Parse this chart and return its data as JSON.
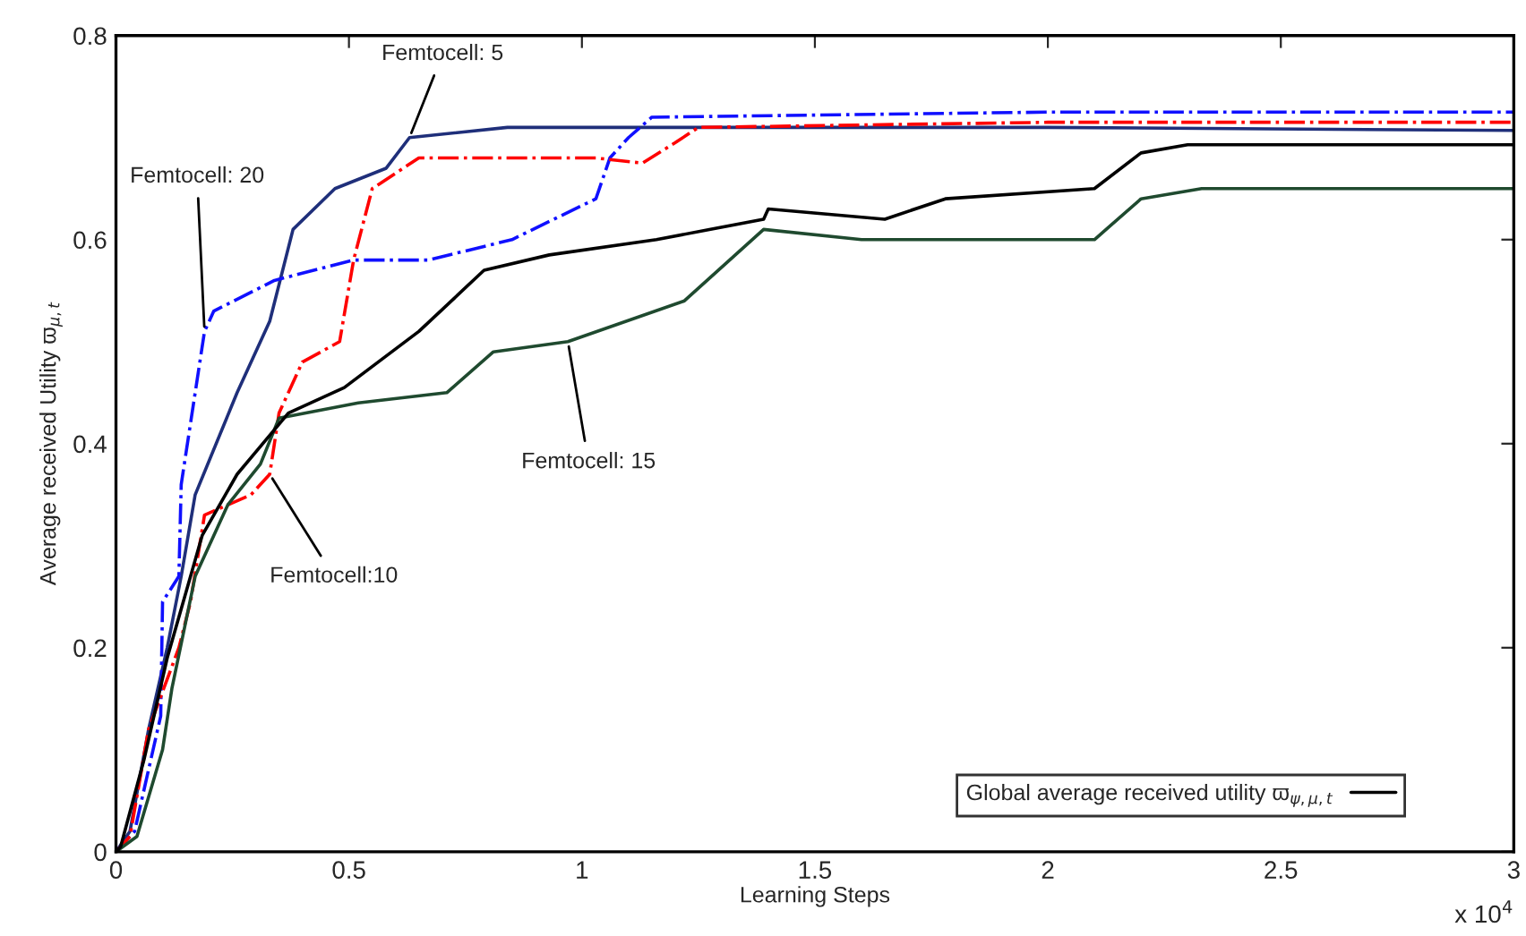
{
  "chart_data": {
    "type": "line",
    "xlabel": "Learning Steps",
    "ylabel": "Average received Utility ϖ$_{μ,t}$",
    "xlim": [
      0,
      3
    ],
    "xticks": [
      0,
      0.5,
      1,
      1.5,
      2,
      2.5,
      3
    ],
    "ylim": [
      0,
      0.8
    ],
    "yticks": [
      0,
      0.2,
      0.4,
      0.6,
      0.8
    ],
    "grid": false,
    "legend": "bottom right",
    "marker": "none",
    "annotations": [
      "x 10$^{4}$",
      {
        "text": "Femtocell: 5",
        "x": 0.63,
        "y": 0.7
      },
      {
        "text": "Femtocell: 20",
        "x": 0.19,
        "y": 0.51
      },
      {
        "text": "Femtocell:10",
        "x": 0.33,
        "y": 0.37
      },
      {
        "text": "Femtocell: 15",
        "x": 0.97,
        "y": 0.5
      }
    ],
    "series": [
      {
        "color": "#1f2f7a",
        "line_style": "solid",
        "x": [
          0,
          0.03,
          0.07,
          0.11,
          0.14,
          0.17,
          0.26,
          0.33,
          0.38,
          0.47,
          0.58,
          0.63,
          0.84,
          1.2,
          2.0,
          3.0
        ],
        "values": [
          0,
          0.02,
          0.12,
          0.2,
          0.27,
          0.35,
          0.45,
          0.52,
          0.61,
          0.65,
          0.67,
          0.7,
          0.71,
          0.71,
          0.71,
          0.707
        ]
      },
      {
        "color": "#1010ff",
        "line_style": "dashed",
        "x": [
          0,
          0.04,
          0.096,
          0.1,
          0.135,
          0.14,
          0.19,
          0.21,
          0.34,
          0.51,
          0.67,
          0.85,
          1.03,
          1.06,
          1.1,
          1.15,
          2.0,
          3.0
        ],
        "values": [
          0,
          0.02,
          0.133,
          0.245,
          0.27,
          0.36,
          0.51,
          0.53,
          0.56,
          0.58,
          0.58,
          0.6,
          0.64,
          0.68,
          0.7,
          0.72,
          0.725,
          0.725
        ]
      },
      {
        "color": "#ff0000",
        "line_style": "dashed",
        "x": [
          0,
          0.03,
          0.07,
          0.135,
          0.16,
          0.19,
          0.29,
          0.33,
          0.35,
          0.4,
          0.48,
          0.51,
          0.55,
          0.65,
          1.03,
          1.13,
          1.2,
          1.25,
          2.0,
          3.0
        ],
        "values": [
          0,
          0.015,
          0.12,
          0.2,
          0.245,
          0.33,
          0.35,
          0.37,
          0.43,
          0.48,
          0.5,
          0.58,
          0.65,
          0.68,
          0.68,
          0.675,
          0.695,
          0.71,
          0.715,
          0.715
        ]
      },
      {
        "color": "#1f4a2f",
        "line_style": "solid",
        "x": [
          0,
          0.045,
          0.1,
          0.12,
          0.17,
          0.24,
          0.31,
          0.35,
          0.52,
          0.71,
          0.81,
          0.97,
          1.22,
          1.39,
          1.6,
          2.1,
          2.2,
          2.33,
          3.0
        ],
        "values": [
          0,
          0.015,
          0.1,
          0.16,
          0.27,
          0.34,
          0.38,
          0.425,
          0.44,
          0.45,
          0.49,
          0.5,
          0.54,
          0.61,
          0.6,
          0.6,
          0.64,
          0.65,
          0.65
        ]
      },
      {
        "name": "Global average received utility ϖ$_{ψ,μ,t}$",
        "color": "#000000",
        "line_style": "solid",
        "x": [
          0,
          0.01,
          0.06,
          0.11,
          0.185,
          0.26,
          0.37,
          0.49,
          0.65,
          0.79,
          0.93,
          1.16,
          1.39,
          1.4,
          1.65,
          1.78,
          2.1,
          2.2,
          2.3,
          3.0
        ],
        "values": [
          0,
          0.005,
          0.09,
          0.19,
          0.31,
          0.37,
          0.43,
          0.455,
          0.51,
          0.57,
          0.585,
          0.6,
          0.62,
          0.63,
          0.62,
          0.64,
          0.65,
          0.685,
          0.693,
          0.693
        ]
      }
    ]
  }
}
